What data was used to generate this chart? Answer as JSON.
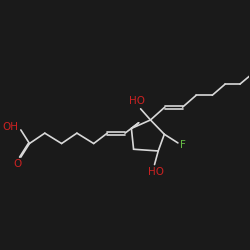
{
  "bg_color": "#1a1a1a",
  "bond_color": "#d8d8d8",
  "O_color": "#cc2222",
  "F_color": "#66bb44",
  "lw": 1.2,
  "fs": 7.0,
  "xlim": [
    0,
    10
  ],
  "ylim": [
    0,
    10
  ]
}
